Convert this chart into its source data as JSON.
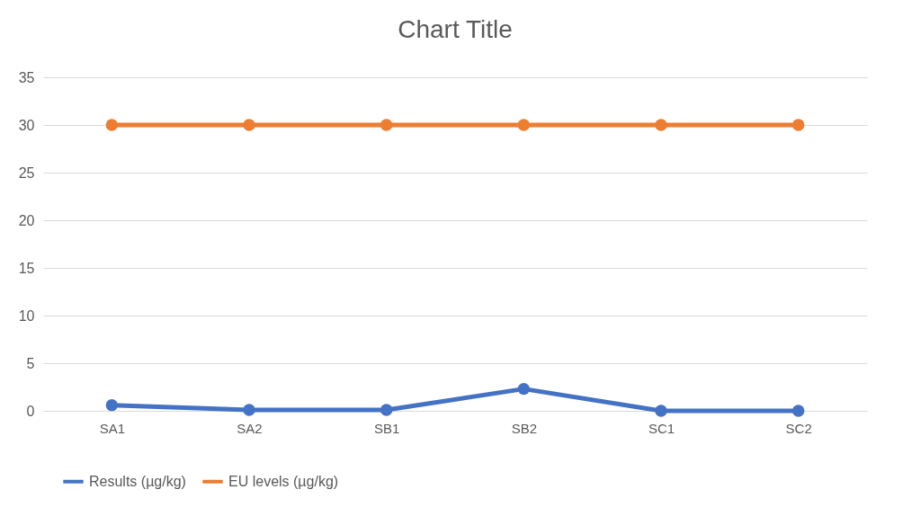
{
  "chart_data": {
    "type": "line",
    "title": "Chart Title",
    "categories": [
      "SA1",
      "SA2",
      "SB1",
      "SB2",
      "SC1",
      "SC2"
    ],
    "series": [
      {
        "name": "Results (µg/kg)",
        "color": "#4472c4",
        "values": [
          0.6,
          0.1,
          0.1,
          2.3,
          0,
          0
        ]
      },
      {
        "name": "EU levels (µg/kg)",
        "color": "#ed7d31",
        "values": [
          30,
          30,
          30,
          30,
          30,
          30
        ]
      }
    ],
    "ylim": [
      0,
      35
    ],
    "yticks": [
      0,
      5,
      10,
      15,
      20,
      25,
      30,
      35
    ],
    "grid": "y",
    "legend": "bottom",
    "marker": "circle",
    "line_style": "solid"
  }
}
